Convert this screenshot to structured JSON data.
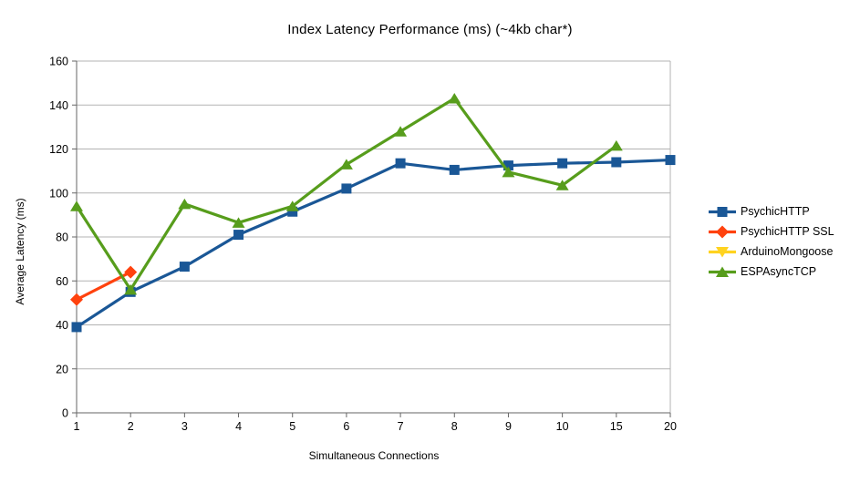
{
  "chart_data": {
    "type": "line",
    "title": "Index Latency Performance (ms) (~4kb char*)",
    "xlabel": "Simultaneous Connections",
    "ylabel": "Average Latency (ms)",
    "categories": [
      "1",
      "2",
      "3",
      "4",
      "5",
      "6",
      "7",
      "8",
      "9",
      "10",
      "15",
      "20"
    ],
    "ylim": [
      0,
      160
    ],
    "ytick_step": 20,
    "grid": true,
    "legend_position": "right",
    "series": [
      {
        "name": "PsychicHTTP",
        "color": "#1a5796",
        "marker": "square",
        "values": [
          39,
          55,
          66.5,
          81,
          91.5,
          102,
          113.5,
          110.5,
          112.5,
          113.5,
          114,
          115
        ]
      },
      {
        "name": "PsychicHTTP SSL",
        "color": "#ff420e",
        "marker": "diamond",
        "values": [
          51.5,
          64,
          null,
          null,
          null,
          null,
          null,
          null,
          null,
          null,
          null,
          null
        ]
      },
      {
        "name": "ArduinoMongoose",
        "color": "#ffd320",
        "marker": "triangle-down",
        "values": [
          null,
          null,
          null,
          null,
          null,
          null,
          null,
          null,
          null,
          null,
          null,
          null
        ]
      },
      {
        "name": "ESPAsyncTCP",
        "color": "#579d1c",
        "marker": "triangle-up",
        "values": [
          94,
          56,
          95,
          86.5,
          94,
          113,
          128,
          143,
          109.5,
          103.5,
          121.5,
          null
        ]
      }
    ],
    "style_colors": {
      "gridline": "#b3b3b3",
      "axis": "#666666",
      "text": "#000000",
      "background": "#ffffff"
    }
  }
}
